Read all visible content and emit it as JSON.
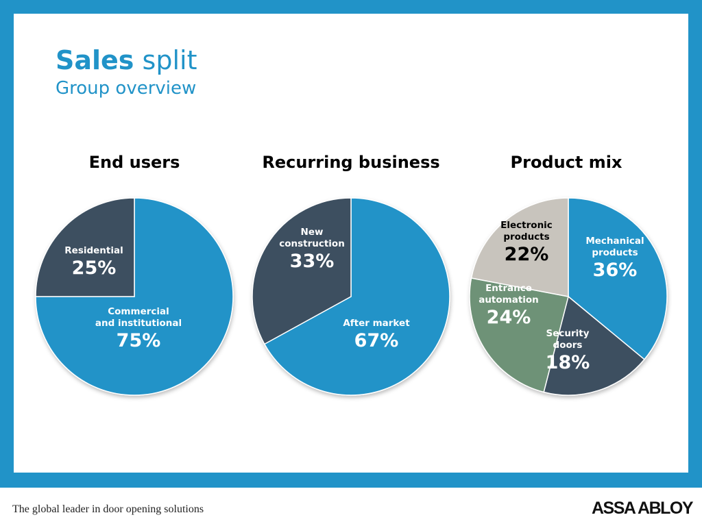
{
  "slide": {
    "title_bold": "Sales",
    "title_rest": "split",
    "subtitle": "Group overview"
  },
  "footer": {
    "tagline": "The global leader in door opening solutions",
    "logo": "ASSA ABLOY"
  },
  "colors": {
    "frame": "#2193c8",
    "blue": "#2193c8",
    "dark": "#3c4f61",
    "green": "#6e9277",
    "gray": "#c8c4bd"
  },
  "chart_data": [
    {
      "type": "pie",
      "title": "End users",
      "slices": [
        {
          "label": "Commercial\nand institutional",
          "value": 75,
          "display": "75%",
          "color": "#2193c8"
        },
        {
          "label": "Residential",
          "value": 25,
          "display": "25%",
          "color": "#3c4f61"
        }
      ]
    },
    {
      "type": "pie",
      "title": "Recurring business",
      "slices": [
        {
          "label": "After market",
          "value": 67,
          "display": "67%",
          "color": "#2193c8"
        },
        {
          "label": "New\nconstruction",
          "value": 33,
          "display": "33%",
          "color": "#3c4f61"
        }
      ]
    },
    {
      "type": "pie",
      "title": "Product mix",
      "slices": [
        {
          "label": "Mechanical\nproducts",
          "value": 36,
          "display": "36%",
          "color": "#2193c8"
        },
        {
          "label": "Security\ndoors",
          "value": 18,
          "display": "18%",
          "color": "#3c4f61"
        },
        {
          "label": "Entrance\nautomation",
          "value": 24,
          "display": "24%",
          "color": "#6e9277"
        },
        {
          "label": "Electronic\nproducts",
          "value": 22,
          "display": "22%",
          "color": "#c8c4bd"
        }
      ]
    }
  ]
}
